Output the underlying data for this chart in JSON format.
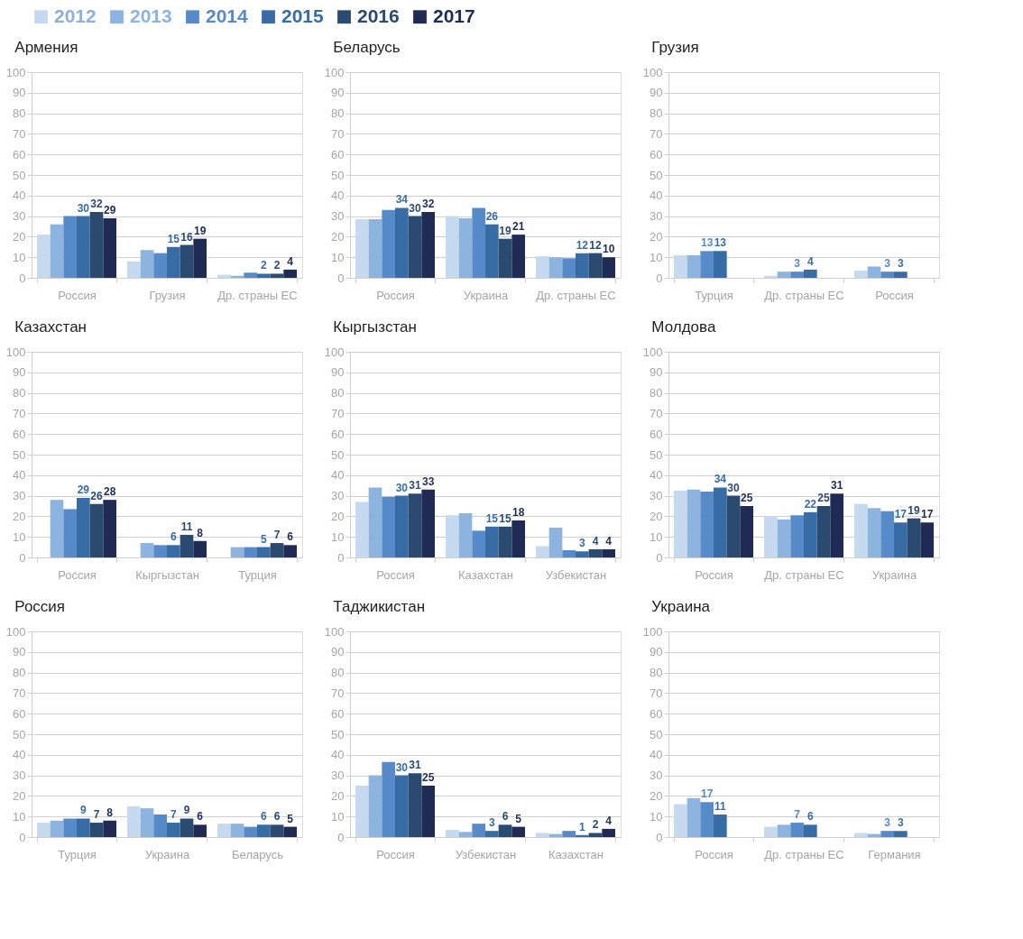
{
  "chart_data": [
    {
      "type": "bar",
      "title": "Армения",
      "categories": [
        "Россия",
        "Грузия",
        "Др. страны ЕС"
      ],
      "ylim": [
        0,
        100
      ],
      "yticks": [
        0,
        10,
        20,
        30,
        40,
        50,
        60,
        70,
        80,
        90,
        100
      ],
      "grid": "y",
      "legend": "top",
      "series": [
        {
          "name": "2012",
          "color": "#c5d9ef",
          "values": [
            21,
            8,
            1.5
          ]
        },
        {
          "name": "2013",
          "color": "#8db3df",
          "values": [
            26,
            13.5,
            1
          ]
        },
        {
          "name": "2014",
          "color": "#568ac8",
          "values": [
            30,
            12,
            2.5
          ]
        },
        {
          "name": "2015",
          "color": "#376ca5",
          "values": [
            30,
            15,
            2
          ],
          "value_labels": [
            "30",
            "15",
            "2"
          ]
        },
        {
          "name": "2016",
          "color": "#2b4a70",
          "values": [
            32,
            16,
            2
          ],
          "value_labels": [
            "32",
            "16",
            "2"
          ]
        },
        {
          "name": "2017",
          "color": "#1f2a55",
          "values": [
            29,
            19,
            4
          ],
          "value_labels": [
            "29",
            "19",
            "4"
          ]
        }
      ]
    },
    {
      "type": "bar",
      "title": "Беларусь",
      "categories": [
        "Россия",
        "Украина",
        "Др. страны ЕС"
      ],
      "ylim": [
        0,
        100
      ],
      "yticks": [
        0,
        10,
        20,
        30,
        40,
        50,
        60,
        70,
        80,
        90,
        100
      ],
      "grid": "y",
      "series": [
        {
          "name": "2012",
          "color": "#c5d9ef",
          "values": [
            28.5,
            30,
            10.5
          ]
        },
        {
          "name": "2013",
          "color": "#8db3df",
          "values": [
            28.5,
            29,
            10
          ]
        },
        {
          "name": "2014",
          "color": "#568ac8",
          "values": [
            33,
            34,
            9.5
          ]
        },
        {
          "name": "2015",
          "color": "#376ca5",
          "values": [
            34,
            26,
            12
          ],
          "value_labels": [
            "34",
            "26",
            "12"
          ]
        },
        {
          "name": "2016",
          "color": "#2b4a70",
          "values": [
            30,
            19,
            12
          ],
          "value_labels": [
            "30",
            "19",
            "12"
          ]
        },
        {
          "name": "2017",
          "color": "#1f2a55",
          "values": [
            32,
            21,
            10
          ],
          "value_labels": [
            "32",
            "21",
            "10"
          ]
        }
      ]
    },
    {
      "type": "bar",
      "title": "Грузия",
      "categories": [
        "Турция",
        "Др. страны ЕС",
        "Россия"
      ],
      "ylim": [
        0,
        100
      ],
      "yticks": [
        0,
        10,
        20,
        30,
        40,
        50,
        60,
        70,
        80,
        90,
        100
      ],
      "grid": "y",
      "series": [
        {
          "name": "2012",
          "color": "#c5d9ef",
          "values": [
            11,
            1,
            3.5
          ]
        },
        {
          "name": "2013",
          "color": "#8db3df",
          "values": [
            11,
            3,
            5.5
          ]
        },
        {
          "name": "2014",
          "color": "#568ac8",
          "values": [
            13,
            3,
            3
          ],
          "value_labels": [
            "13",
            "3",
            "3"
          ]
        },
        {
          "name": "2015",
          "color": "#376ca5",
          "values": [
            13,
            4,
            3
          ],
          "value_labels": [
            "13",
            "4",
            "3"
          ]
        },
        {
          "name": "2016",
          "color": "#2b4a70",
          "values": [
            null,
            null,
            null
          ]
        },
        {
          "name": "2017",
          "color": "#1f2a55",
          "values": [
            null,
            null,
            null
          ]
        }
      ]
    },
    {
      "type": "bar",
      "title": "Казахстан",
      "categories": [
        "Россия",
        "Кыргызстан",
        "Турция"
      ],
      "ylim": [
        0,
        100
      ],
      "yticks": [
        0,
        10,
        20,
        30,
        40,
        50,
        60,
        70,
        80,
        90,
        100
      ],
      "grid": "y",
      "series": [
        {
          "name": "2012",
          "color": "#c5d9ef",
          "values": [
            null,
            null,
            null
          ]
        },
        {
          "name": "2013",
          "color": "#8db3df",
          "values": [
            28,
            7,
            5
          ]
        },
        {
          "name": "2014",
          "color": "#568ac8",
          "values": [
            23.5,
            6,
            5
          ]
        },
        {
          "name": "2015",
          "color": "#376ca5",
          "values": [
            29,
            6,
            5
          ],
          "value_labels": [
            "29",
            "6",
            "5"
          ]
        },
        {
          "name": "2016",
          "color": "#2b4a70",
          "values": [
            26,
            11,
            7
          ],
          "value_labels": [
            "26",
            "11",
            "7"
          ]
        },
        {
          "name": "2017",
          "color": "#1f2a55",
          "values": [
            28,
            8,
            6
          ],
          "value_labels": [
            "28",
            "8",
            "6"
          ]
        }
      ]
    },
    {
      "type": "bar",
      "title": "Кыргызстан",
      "categories": [
        "Россия",
        "Казахстан",
        "Узбекистан"
      ],
      "ylim": [
        0,
        100
      ],
      "yticks": [
        0,
        10,
        20,
        30,
        40,
        50,
        60,
        70,
        80,
        90,
        100
      ],
      "grid": "y",
      "series": [
        {
          "name": "2012",
          "color": "#c5d9ef",
          "values": [
            27,
            20.5,
            5.5
          ]
        },
        {
          "name": "2013",
          "color": "#8db3df",
          "values": [
            34,
            21.5,
            14.5
          ]
        },
        {
          "name": "2014",
          "color": "#568ac8",
          "values": [
            29.5,
            13,
            3.5
          ]
        },
        {
          "name": "2015",
          "color": "#376ca5",
          "values": [
            30,
            15,
            3
          ],
          "value_labels": [
            "30",
            "15",
            "3"
          ]
        },
        {
          "name": "2016",
          "color": "#2b4a70",
          "values": [
            31,
            15,
            4
          ],
          "value_labels": [
            "31",
            "15",
            "4"
          ]
        },
        {
          "name": "2017",
          "color": "#1f2a55",
          "values": [
            33,
            18,
            4
          ],
          "value_labels": [
            "33",
            "18",
            "4"
          ]
        }
      ]
    },
    {
      "type": "bar",
      "title": "Молдова",
      "categories": [
        "Россия",
        "Др. страны ЕС",
        "Украина"
      ],
      "ylim": [
        0,
        100
      ],
      "yticks": [
        0,
        10,
        20,
        30,
        40,
        50,
        60,
        70,
        80,
        90,
        100
      ],
      "grid": "y",
      "series": [
        {
          "name": "2012",
          "color": "#c5d9ef",
          "values": [
            32.5,
            20,
            26
          ]
        },
        {
          "name": "2013",
          "color": "#8db3df",
          "values": [
            33,
            18.5,
            24
          ]
        },
        {
          "name": "2014",
          "color": "#568ac8",
          "values": [
            32,
            20.5,
            22.5
          ]
        },
        {
          "name": "2015",
          "color": "#376ca5",
          "values": [
            34,
            22,
            17
          ],
          "value_labels": [
            "34",
            "22",
            "17"
          ]
        },
        {
          "name": "2016",
          "color": "#2b4a70",
          "values": [
            30,
            25,
            19
          ],
          "value_labels": [
            "30",
            "25",
            "19"
          ]
        },
        {
          "name": "2017",
          "color": "#1f2a55",
          "values": [
            25,
            31,
            17
          ],
          "value_labels": [
            "25",
            "31",
            "17"
          ]
        }
      ]
    },
    {
      "type": "bar",
      "title": "Россия",
      "categories": [
        "Турция",
        "Украина",
        "Беларусь"
      ],
      "ylim": [
        0,
        100
      ],
      "yticks": [
        0,
        10,
        20,
        30,
        40,
        50,
        60,
        70,
        80,
        90,
        100
      ],
      "grid": "y",
      "series": [
        {
          "name": "2012",
          "color": "#c5d9ef",
          "values": [
            7,
            15,
            6.5
          ]
        },
        {
          "name": "2013",
          "color": "#8db3df",
          "values": [
            8,
            14,
            6.5
          ]
        },
        {
          "name": "2014",
          "color": "#568ac8",
          "values": [
            9,
            11,
            5
          ]
        },
        {
          "name": "2015",
          "color": "#376ca5",
          "values": [
            9,
            7,
            6
          ],
          "value_labels": [
            "9",
            "7",
            "6"
          ]
        },
        {
          "name": "2016",
          "color": "#2b4a70",
          "values": [
            7,
            9,
            6
          ],
          "value_labels": [
            "7",
            "9",
            "6"
          ]
        },
        {
          "name": "2017",
          "color": "#1f2a55",
          "values": [
            8,
            6,
            5
          ],
          "value_labels": [
            "8",
            "6",
            "5"
          ]
        }
      ]
    },
    {
      "type": "bar",
      "title": "Таджикистан",
      "categories": [
        "Россия",
        "Узбекистан",
        "Казахстан"
      ],
      "ylim": [
        0,
        100
      ],
      "yticks": [
        0,
        10,
        20,
        30,
        40,
        50,
        60,
        70,
        80,
        90,
        100
      ],
      "grid": "y",
      "series": [
        {
          "name": "2012",
          "color": "#c5d9ef",
          "values": [
            25,
            3.5,
            2
          ]
        },
        {
          "name": "2013",
          "color": "#8db3df",
          "values": [
            30,
            2.5,
            1.5
          ]
        },
        {
          "name": "2014",
          "color": "#568ac8",
          "values": [
            36.5,
            6.5,
            3
          ]
        },
        {
          "name": "2015",
          "color": "#376ca5",
          "values": [
            30,
            3,
            1
          ],
          "value_labels": [
            "30",
            "3",
            "1"
          ]
        },
        {
          "name": "2016",
          "color": "#2b4a70",
          "values": [
            31,
            6,
            2
          ],
          "value_labels": [
            "31",
            "6",
            "2"
          ]
        },
        {
          "name": "2017",
          "color": "#1f2a55",
          "values": [
            25,
            5,
            4
          ],
          "value_labels": [
            "25",
            "5",
            "4"
          ]
        }
      ]
    },
    {
      "type": "bar",
      "title": "Украина",
      "categories": [
        "Россия",
        "Др. страны ЕС",
        "Германия"
      ],
      "ylim": [
        0,
        100
      ],
      "yticks": [
        0,
        10,
        20,
        30,
        40,
        50,
        60,
        70,
        80,
        90,
        100
      ],
      "grid": "y",
      "series": [
        {
          "name": "2012",
          "color": "#c5d9ef",
          "values": [
            16,
            5,
            2
          ]
        },
        {
          "name": "2013",
          "color": "#8db3df",
          "values": [
            19,
            6,
            1.5
          ]
        },
        {
          "name": "2014",
          "color": "#568ac8",
          "values": [
            17,
            7,
            3
          ],
          "value_labels": [
            "17",
            "7",
            "3"
          ]
        },
        {
          "name": "2015",
          "color": "#376ca5",
          "values": [
            11,
            6,
            3
          ],
          "value_labels": [
            "11",
            "6",
            "3"
          ]
        },
        {
          "name": "2016",
          "color": "#2b4a70",
          "values": [
            null,
            null,
            null
          ]
        },
        {
          "name": "2017",
          "color": "#1f2a55",
          "values": [
            null,
            null,
            null
          ]
        }
      ]
    }
  ]
}
